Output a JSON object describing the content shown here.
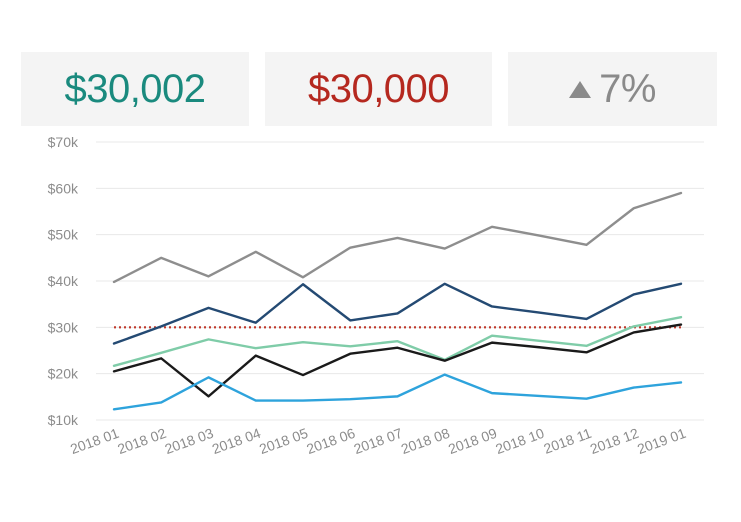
{
  "kpis": [
    {
      "value": "$30,002",
      "color": "#1a8a7e"
    },
    {
      "value": "$30,000",
      "color": "#b5281f"
    },
    {
      "value": "7%",
      "color": "#8a8a8a",
      "icon": "triangle-up-icon"
    }
  ],
  "chart_data": {
    "type": "line",
    "categories": [
      "2018 01",
      "2018 02",
      "2018 03",
      "2018 04",
      "2018 05",
      "2018 06",
      "2018 07",
      "2018 08",
      "2018 09",
      "2018 10",
      "2018 11",
      "2018 12",
      "2019 01"
    ],
    "y_ticks": [
      "$10k",
      "$20k",
      "$30k",
      "$40k",
      "$50k",
      "$60k",
      "$70k"
    ],
    "ylim": [
      10000,
      70000
    ],
    "grid": true,
    "target": {
      "value": 30000,
      "color": "#c0392b",
      "style": "dotted"
    },
    "series": [
      {
        "color": "#8e8e8e",
        "values": [
          39800,
          45000,
          41000,
          46300,
          40800,
          47200,
          49300,
          47000,
          51700,
          49800,
          47800,
          55700,
          59000
        ]
      },
      {
        "color": "#244a73",
        "values": [
          26500,
          30200,
          34200,
          31000,
          39300,
          31500,
          33000,
          39400,
          34500,
          33200,
          31800,
          37100,
          39400
        ]
      },
      {
        "color": "#7fcca8",
        "values": [
          21700,
          24500,
          27400,
          25500,
          26800,
          25900,
          27000,
          23000,
          28200,
          27100,
          26000,
          30200,
          32200
        ]
      },
      {
        "color": "#1a1a1a",
        "values": [
          20500,
          23300,
          15100,
          23900,
          19700,
          24300,
          25600,
          22800,
          26700,
          25700,
          24600,
          28900,
          30600
        ]
      },
      {
        "color": "#2ea3dc",
        "values": [
          12300,
          13800,
          19200,
          14200,
          14200,
          14500,
          15100,
          19800,
          15800,
          15200,
          14600,
          17000,
          18100
        ]
      }
    ]
  }
}
